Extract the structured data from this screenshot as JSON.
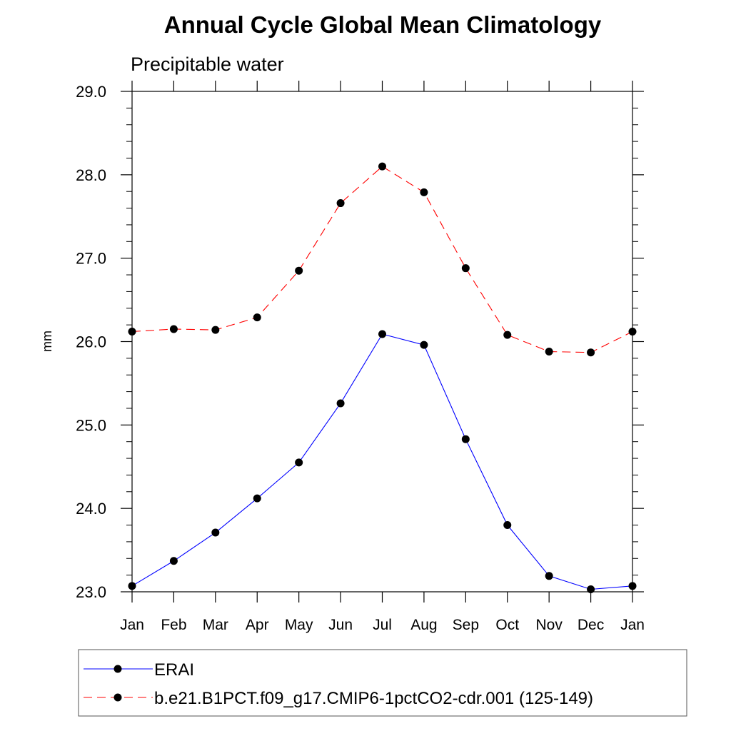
{
  "chart_data": {
    "type": "line",
    "title": "Annual Cycle Global Mean Climatology",
    "subtitle": "Precipitable water",
    "xlabel": "",
    "ylabel": "mm",
    "categories": [
      "Jan",
      "Feb",
      "Mar",
      "Apr",
      "May",
      "Jun",
      "Jul",
      "Aug",
      "Sep",
      "Oct",
      "Nov",
      "Dec",
      "Jan"
    ],
    "ylim": [
      23.0,
      29.0
    ],
    "yticks": [
      "23.0",
      "24.0",
      "25.0",
      "26.0",
      "27.0",
      "28.0",
      "29.0"
    ],
    "ytick_values": [
      23.0,
      24.0,
      25.0,
      26.0,
      27.0,
      28.0,
      29.0
    ],
    "grid": false,
    "legend_position": "bottom",
    "series": [
      {
        "name": "ERAI",
        "color": "#0000ff",
        "style": "solid",
        "marker": "circle",
        "values": [
          23.07,
          23.37,
          23.71,
          24.12,
          24.55,
          25.26,
          26.09,
          25.96,
          24.83,
          23.8,
          23.19,
          23.03,
          23.07
        ]
      },
      {
        "name": "b.e21.B1PCT.f09_g17.CMIP6-1pctCO2-cdr.001 (125-149)",
        "color": "#ff0000",
        "style": "dashed",
        "marker": "circle",
        "values": [
          26.12,
          26.15,
          26.14,
          26.29,
          26.85,
          27.66,
          28.1,
          27.79,
          26.88,
          26.08,
          25.88,
          25.87,
          26.12
        ]
      }
    ]
  }
}
